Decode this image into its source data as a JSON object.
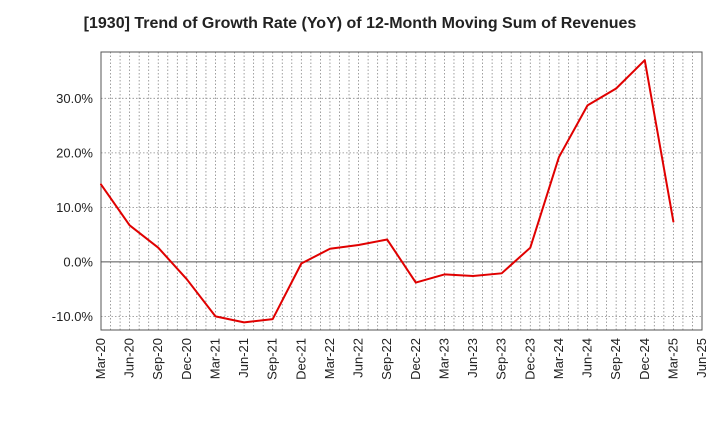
{
  "chart_data": {
    "type": "line",
    "title": "[1930]  Trend of Growth Rate (YoY) of 12-Month Moving Sum of Revenues",
    "xlabel": "",
    "ylabel": "",
    "x_tick_labels": [
      "Mar-20",
      "Jun-20",
      "Sep-20",
      "Dec-20",
      "Mar-21",
      "Jun-21",
      "Sep-21",
      "Dec-21",
      "Mar-22",
      "Jun-22",
      "Sep-22",
      "Dec-22",
      "Mar-23",
      "Jun-23",
      "Sep-23",
      "Dec-23",
      "Mar-24",
      "Jun-24",
      "Sep-24",
      "Dec-24",
      "Mar-25",
      "Jun-25"
    ],
    "y_ticks": [
      -10,
      0,
      10,
      20,
      30
    ],
    "y_tick_labels": [
      "-10.0%",
      "0.0%",
      "10.0%",
      "20.0%",
      "30.0%"
    ],
    "ylim": [
      -12.5,
      38.5
    ],
    "grid": true,
    "series": [
      {
        "color": "#e00000",
        "x": [
          "Mar-20",
          "Jun-20",
          "Sep-20",
          "Dec-20",
          "Mar-21",
          "Jun-21",
          "Sep-21",
          "Dec-21",
          "Mar-22",
          "Jun-22",
          "Sep-22",
          "Dec-22",
          "Mar-23",
          "Jun-23",
          "Sep-23",
          "Dec-23",
          "Mar-24",
          "Jun-24",
          "Sep-24",
          "Dec-24",
          "Mar-25"
        ],
        "values": [
          14.2,
          6.7,
          2.6,
          -3.2,
          -10.0,
          -11.1,
          -10.5,
          -0.3,
          2.4,
          3.1,
          4.1,
          -3.8,
          -2.3,
          -2.6,
          -2.1,
          2.6,
          19.2,
          28.7,
          31.8,
          37.0,
          7.4
        ]
      }
    ]
  }
}
